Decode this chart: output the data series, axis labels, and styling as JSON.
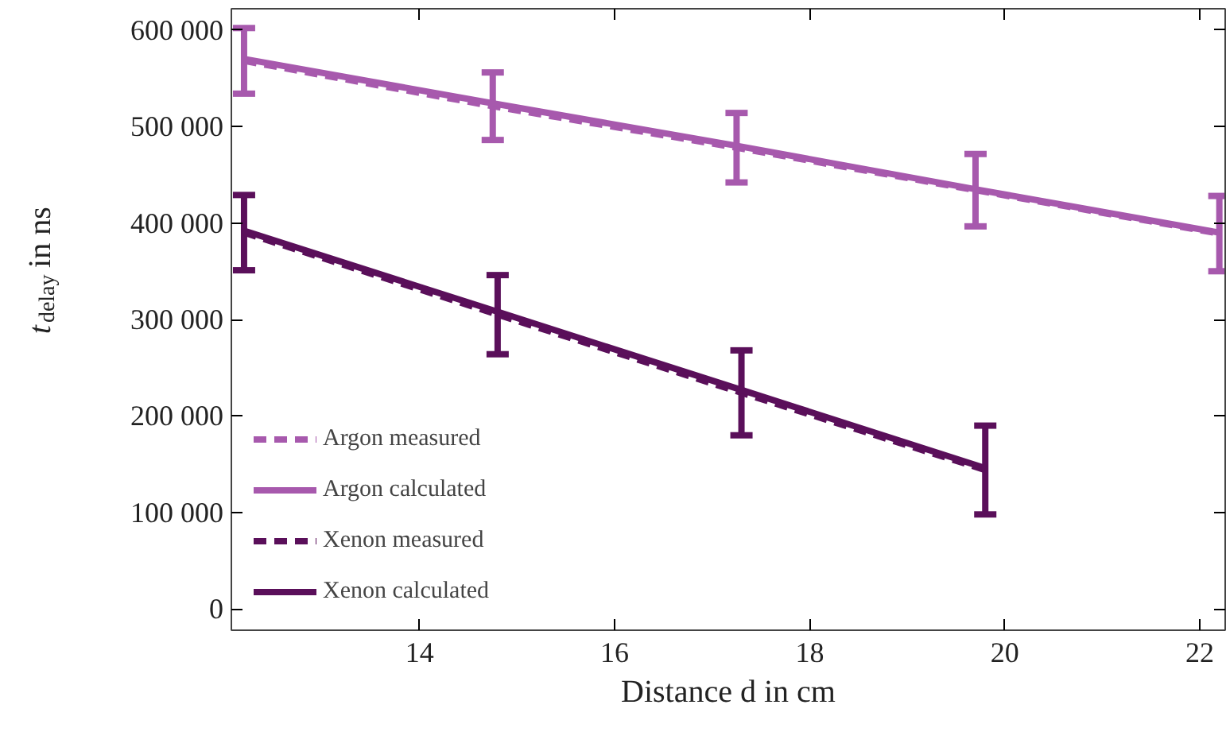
{
  "chart_data": {
    "type": "line",
    "xlabel": "Distance d in cm",
    "ylabel": "t$_{delay}$ in ns",
    "xlim": [
      12.07,
      22.26
    ],
    "ylim": [
      -22000,
      622000
    ],
    "xticks": [
      14,
      16,
      18,
      20,
      22
    ],
    "yticks": [
      {
        "value": 0,
        "label": "0"
      },
      {
        "value": 100000,
        "label": "100 000"
      },
      {
        "value": 200000,
        "label": "200 000"
      },
      {
        "value": 300000,
        "label": "300 000"
      },
      {
        "value": 400000,
        "label": "400 000"
      },
      {
        "value": 500000,
        "label": "500 000"
      },
      {
        "value": 600000,
        "label": "600 000"
      }
    ],
    "grid": false,
    "legend": "bottom left",
    "marker": "none",
    "series": [
      {
        "name": "Argon measured",
        "color": "#a759ad",
        "line_style": "dashed",
        "x": [
          12.2,
          14.75,
          17.25,
          19.7,
          22.2
        ],
        "values": [
          568000,
          521000,
          478000,
          434000,
          389000
        ],
        "errors": [
          34000,
          35000,
          36000,
          37500,
          39000
        ]
      },
      {
        "name": "Argon calculated",
        "color": "#a759ad",
        "line_style": "solid",
        "x": [
          12.2,
          14.75,
          17.25,
          19.7,
          22.2
        ],
        "values": [
          570000,
          524000,
          480000,
          435000,
          390000
        ]
      },
      {
        "name": "Xenon measured",
        "color": "#5a0f5a",
        "line_style": "dashed",
        "x": [
          12.2,
          14.8,
          17.3,
          19.8
        ],
        "values": [
          390000,
          305000,
          224000,
          144000
        ],
        "errors": [
          39000,
          41000,
          44000,
          46000
        ]
      },
      {
        "name": "Xenon calculated",
        "color": "#5a0f5a",
        "line_style": "solid",
        "x": [
          12.2,
          14.8,
          17.3,
          19.8
        ],
        "values": [
          392000,
          308000,
          227000,
          146000
        ]
      }
    ]
  }
}
